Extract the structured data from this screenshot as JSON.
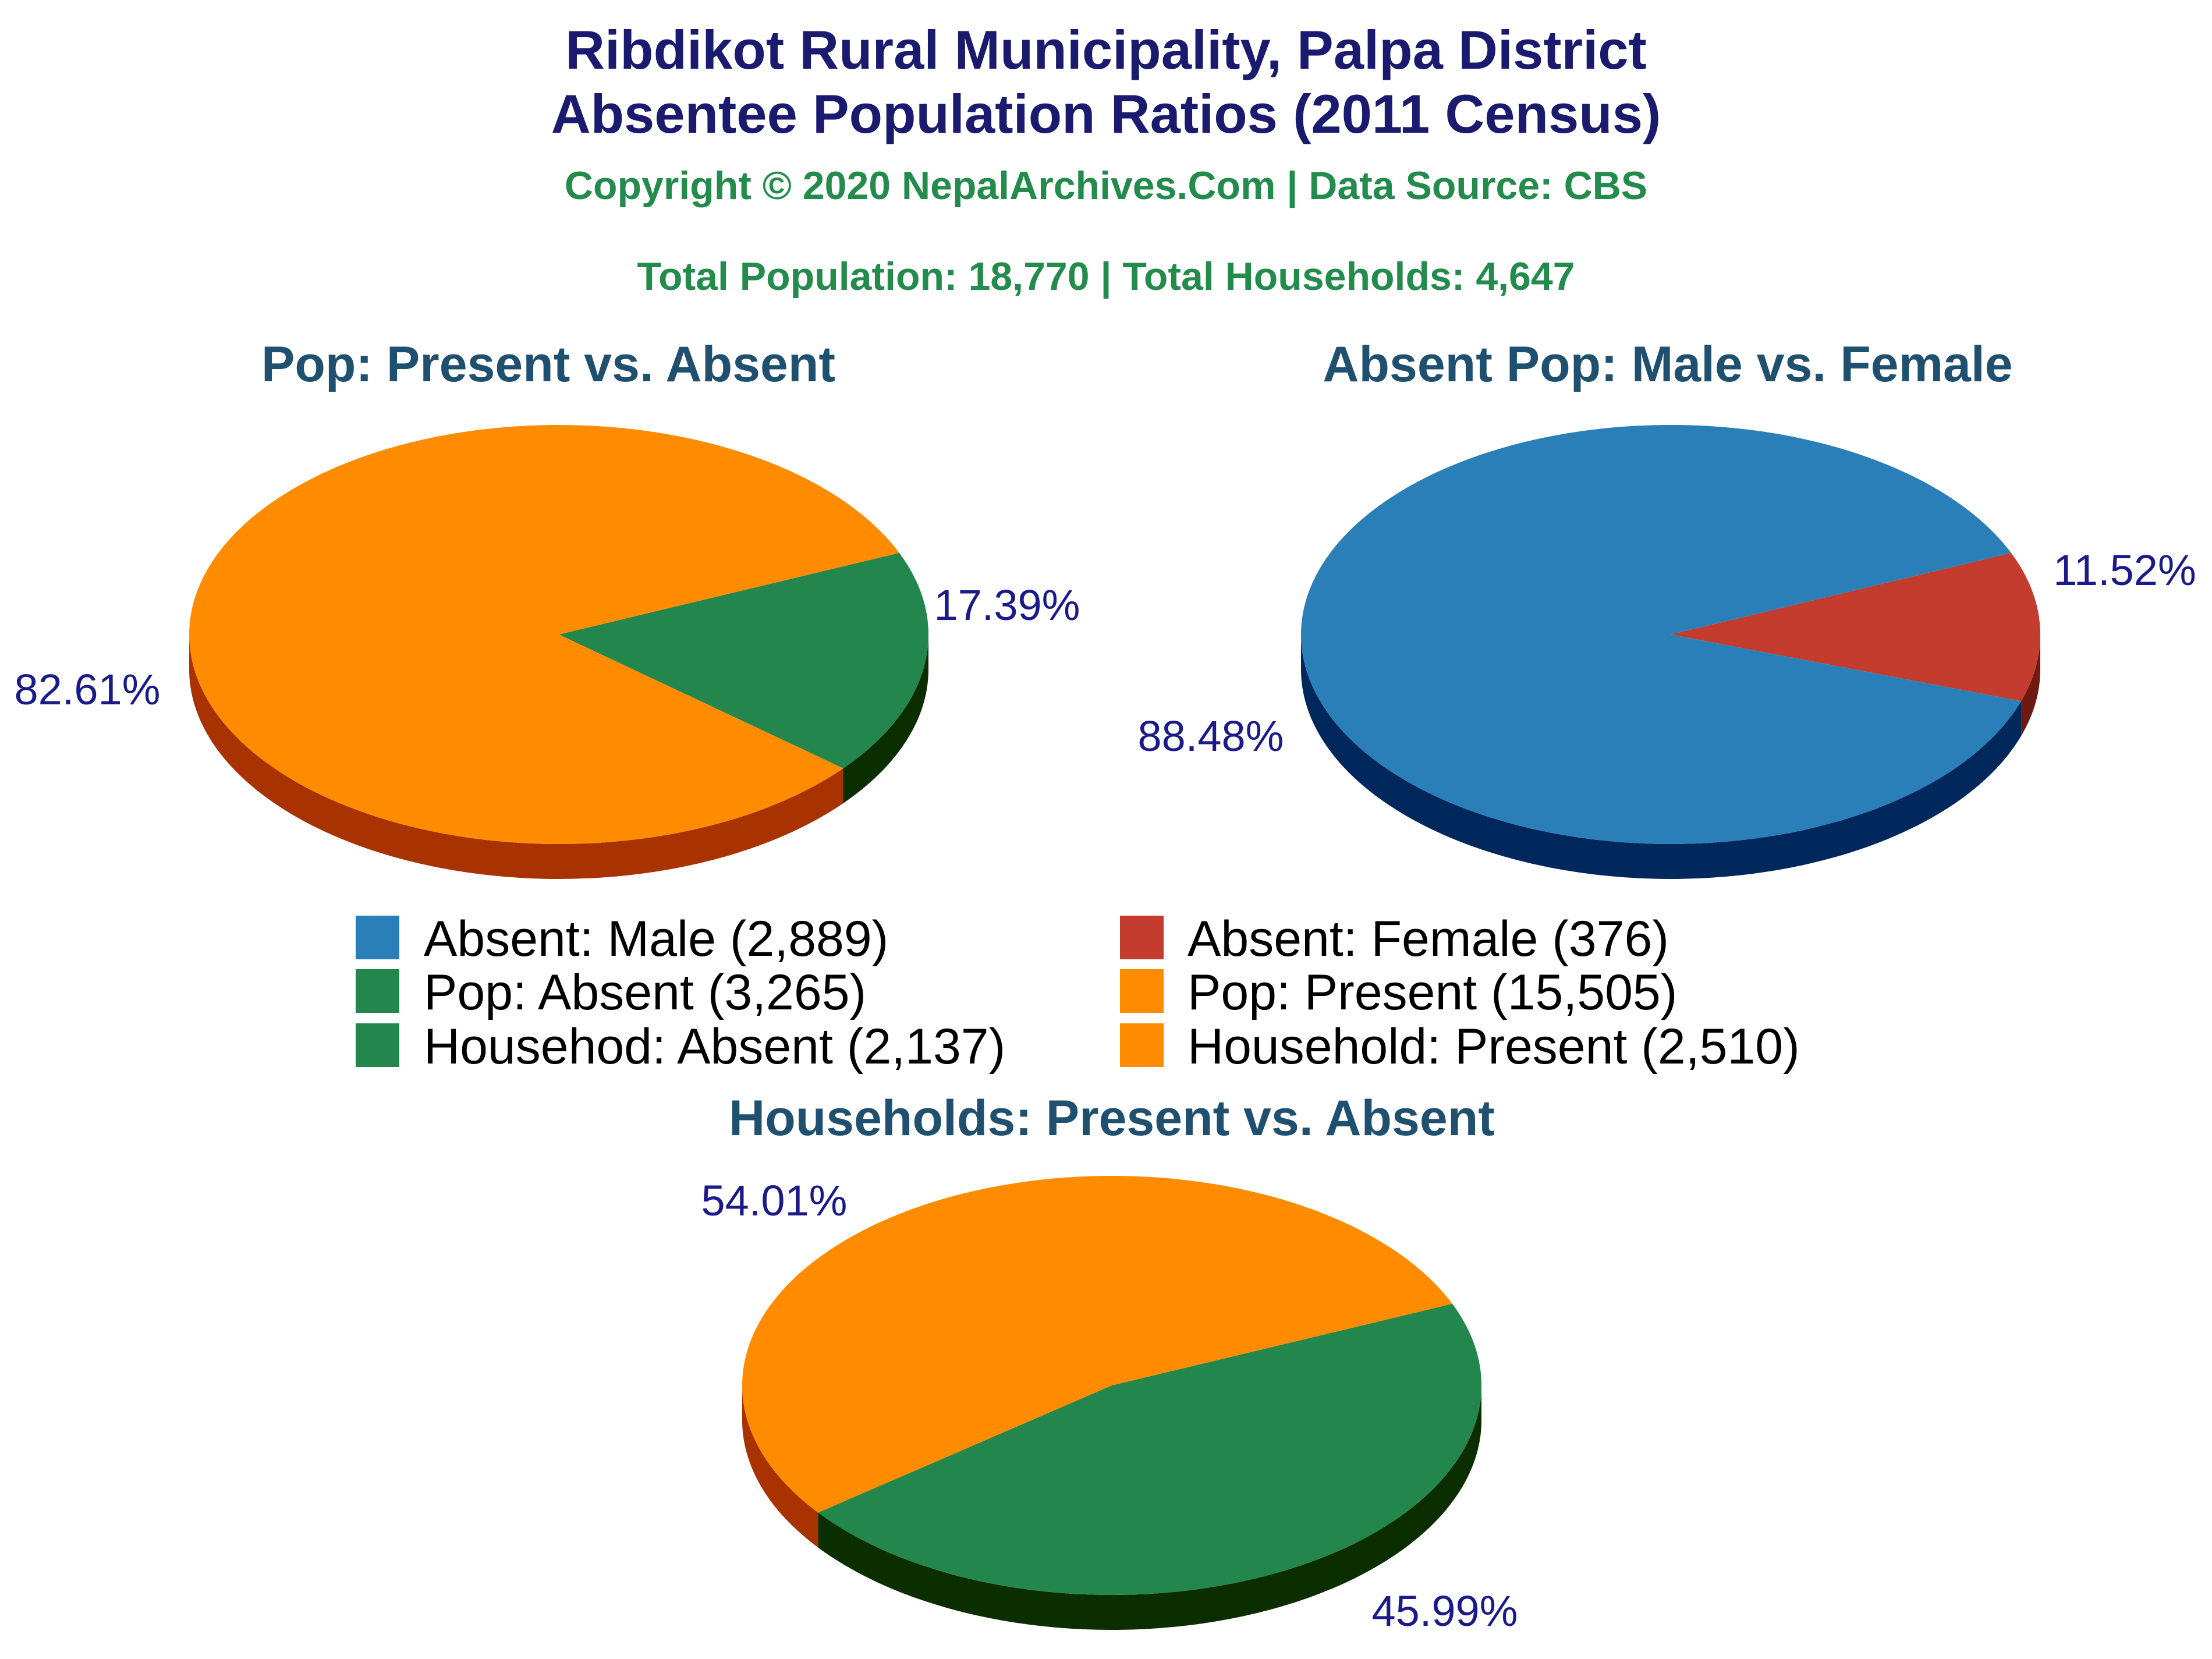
{
  "title_line1": "Ribdikot Rural Municipality, Palpa District",
  "title_line2": "Absentee Population Ratios (2011 Census)",
  "copyright": "Copyright © 2020 NepalArchives.Com | Data Source: CBS",
  "totals": "Total Population: 18,770 | Total Households: 4,647",
  "colors": {
    "present": "#ff8c00",
    "present_side": "#a83200",
    "absent": "#23874d",
    "absent_side": "#0b2e00",
    "male": "#2b7fb8",
    "male_side": "#00285c",
    "female": "#c43c2e",
    "female_side": "#6e1a12"
  },
  "chart_data": [
    {
      "type": "pie",
      "title": "Pop: Present vs. Absent",
      "slices": [
        {
          "label": "Pop: Absent",
          "value": 3265,
          "percent_label": "17.39%",
          "color": "#23874d",
          "side_color": "#0b2e00"
        },
        {
          "label": "Pop: Present",
          "value": 15505,
          "percent_label": "82.61%",
          "color": "#ff8c00",
          "side_color": "#a83200"
        }
      ]
    },
    {
      "type": "pie",
      "title": "Absent Pop: Male vs. Female",
      "slices": [
        {
          "label": "Absent: Female",
          "value": 376,
          "percent_label": "11.52%",
          "color": "#c43c2e",
          "side_color": "#6e1a12"
        },
        {
          "label": "Absent: Male",
          "value": 2889,
          "percent_label": "88.48%",
          "color": "#2b7fb8",
          "side_color": "#00285c"
        }
      ]
    },
    {
      "type": "pie",
      "title": "Households: Present vs. Absent",
      "slices": [
        {
          "label": "Househod: Absent",
          "value": 2137,
          "percent_label": "45.99%",
          "color": "#23874d",
          "side_color": "#0b2e00"
        },
        {
          "label": "Household: Present",
          "value": 2510,
          "percent_label": "54.01%",
          "color": "#ff8c00",
          "side_color": "#a83200"
        }
      ]
    }
  ],
  "legend": [
    {
      "text": "Absent: Male (2,889)",
      "color": "#2b7fb8"
    },
    {
      "text": "Absent: Female (376)",
      "color": "#c43c2e"
    },
    {
      "text": "Pop: Absent (3,265)",
      "color": "#23874d"
    },
    {
      "text": "Pop: Present (15,505)",
      "color": "#ff8c00"
    },
    {
      "text": "Househod: Absent (2,137)",
      "color": "#23874d"
    },
    {
      "text": "Household: Present (2,510)",
      "color": "#ff8c00"
    }
  ]
}
